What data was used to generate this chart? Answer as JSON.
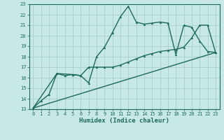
{
  "background_color": "#c8e8e8",
  "grid_color": "#a8cece",
  "line_color": "#1a6b5a",
  "xlabel": "Humidex (Indice chaleur)",
  "xlim": [
    -0.5,
    23.5
  ],
  "ylim": [
    13,
    23
  ],
  "yticks": [
    13,
    14,
    15,
    16,
    17,
    18,
    19,
    20,
    21,
    22,
    23
  ],
  "xticks": [
    0,
    1,
    2,
    3,
    4,
    5,
    6,
    7,
    8,
    9,
    10,
    11,
    12,
    13,
    14,
    15,
    16,
    17,
    18,
    19,
    20,
    21,
    22,
    23
  ],
  "line1_x": [
    0,
    1,
    2,
    3,
    4,
    5,
    6,
    7,
    8,
    9,
    10,
    11,
    12,
    13,
    14,
    15,
    16,
    17,
    18,
    19,
    20,
    21,
    22,
    23
  ],
  "line1_y": [
    13.1,
    13.8,
    14.4,
    16.4,
    16.2,
    16.3,
    16.2,
    15.5,
    18.0,
    18.9,
    20.3,
    21.8,
    22.8,
    21.3,
    21.1,
    21.2,
    21.3,
    21.2,
    18.2,
    21.0,
    20.8,
    19.5,
    18.5,
    18.4
  ],
  "line2_x": [
    0,
    3,
    5,
    6,
    7,
    8,
    9,
    10,
    11,
    12,
    13,
    14,
    15,
    16,
    17,
    18,
    19,
    20,
    21,
    22,
    23
  ],
  "line2_y": [
    13.1,
    16.4,
    16.3,
    16.2,
    17.0,
    17.0,
    17.0,
    17.0,
    17.2,
    17.5,
    17.8,
    18.1,
    18.3,
    18.5,
    18.6,
    18.7,
    18.9,
    19.8,
    21.0,
    21.0,
    18.4
  ],
  "line3_x": [
    0,
    23
  ],
  "line3_y": [
    13.1,
    18.4
  ],
  "figsize": [
    3.2,
    2.0
  ],
  "dpi": 100
}
